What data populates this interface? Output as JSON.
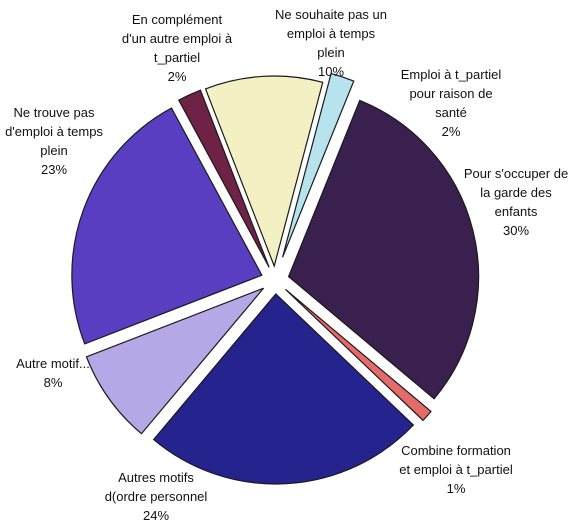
{
  "chart_data": {
    "type": "pie",
    "title": "",
    "slices": [
      {
        "label": [
          "Pour s'occuper de",
          "la garde des",
          "enfants"
        ],
        "value": 30,
        "pct": "30%",
        "color": "#39204f"
      },
      {
        "label": [
          "Combine formation",
          "et emploi à t_partiel"
        ],
        "value": 1,
        "pct": "1%",
        "color": "#e56a6a"
      },
      {
        "label": [
          "Autres motifs",
          "d(ordre personnel"
        ],
        "value": 24,
        "pct": "24%",
        "color": "#25248f"
      },
      {
        "label": [
          "Autre motif..."
        ],
        "value": 8,
        "pct": "8%",
        "color": "#b4a8e6"
      },
      {
        "label": [
          "Ne trouve pas",
          "d'emploi à temps",
          "plein"
        ],
        "value": 23,
        "pct": "23%",
        "color": "#5a3ec2"
      },
      {
        "label": [
          "En complément",
          "d'un autre emploi à",
          "t_partiel"
        ],
        "value": 2,
        "pct": "2%",
        "color": "#6f2246"
      },
      {
        "label": [
          "Ne souhaite pas un",
          "emploi à temps",
          "plein"
        ],
        "value": 10,
        "pct": "10%",
        "color": "#f3f1c4"
      },
      {
        "label": [
          "Emploi à t_partiel",
          "pour raison de",
          "santé"
        ],
        "value": 2,
        "pct": "2%",
        "color": "#b7e3ef"
      }
    ]
  }
}
